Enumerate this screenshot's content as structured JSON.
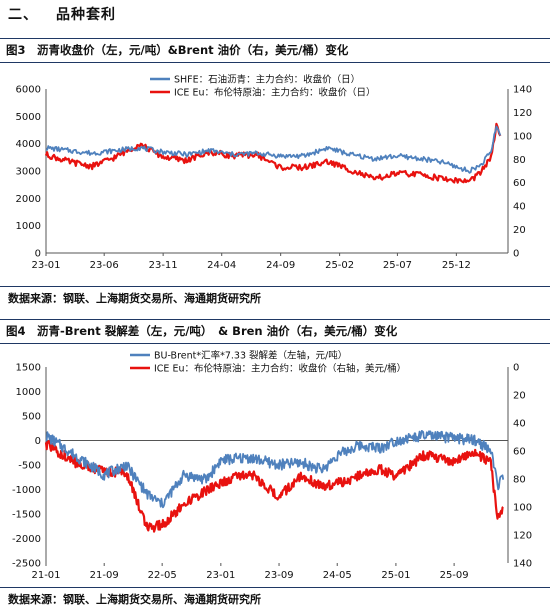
{
  "section": {
    "number": "二、",
    "title": "品种套利"
  },
  "figures": [
    {
      "title": "图3　沥青收盘价（左，元/吨）&Brent 油价（右，美元/桶）变化",
      "source": "数据来源：钢联、上海期货交易所、海通期货研究所"
    },
    {
      "title": "图4　沥青-Brent 裂解差（左，元/吨）　& Bren 油价（右，美元/桶）变化",
      "source": "数据来源：钢联、上海期货交易所、海通期货研究所"
    }
  ],
  "chart_data": [
    {
      "type": "line",
      "x_ticks": [
        "23-01",
        "23-06",
        "23-11",
        "24-04",
        "24-09",
        "25-02",
        "25-07",
        "25-12"
      ],
      "y_left": {
        "ticks": [
          0,
          1000,
          2000,
          3000,
          4000,
          5000,
          6000
        ],
        "range": [
          0,
          6000
        ]
      },
      "y_right": {
        "ticks": [
          0,
          20,
          40,
          60,
          80,
          100,
          120,
          140
        ],
        "range": [
          0,
          140
        ]
      },
      "grid": false,
      "legend_position": "top-left",
      "series": [
        {
          "name": "SHFE：石油沥青：主力合约：收盘价（日）",
          "axis": "left",
          "color": "#4f81bd",
          "x": [
            "2023-01",
            "2023-03",
            "2023-05",
            "2023-07",
            "2023-09",
            "2023-11",
            "2024-01",
            "2024-03",
            "2024-05",
            "2024-07",
            "2024-09",
            "2024-11",
            "2025-01",
            "2025-03",
            "2025-05",
            "2025-07",
            "2025-09",
            "2025-11",
            "2026-01",
            "2026-02",
            "2026-03",
            "2026-03-15",
            "2026-03-25"
          ],
          "values": [
            3850,
            3750,
            3650,
            3750,
            3850,
            3700,
            3600,
            3750,
            3600,
            3650,
            3550,
            3550,
            3850,
            3600,
            3450,
            3550,
            3450,
            3300,
            3000,
            3200,
            3700,
            4650,
            4300
          ]
        },
        {
          "name": "ICE Eu：布伦特原油：主力合约：收盘价（日）",
          "axis": "right",
          "color": "#e8120f",
          "x": [
            "2023-01",
            "2023-03",
            "2023-05",
            "2023-07",
            "2023-09",
            "2023-11",
            "2024-01",
            "2024-03",
            "2024-05",
            "2024-07",
            "2024-09",
            "2024-11",
            "2025-01",
            "2025-03",
            "2025-05",
            "2025-07",
            "2025-09",
            "2025-11",
            "2026-01",
            "2026-02",
            "2026-03",
            "2026-03-15",
            "2026-03-25"
          ],
          "values": [
            84,
            78,
            74,
            82,
            93,
            82,
            79,
            86,
            83,
            84,
            73,
            73,
            78,
            71,
            63,
            68,
            67,
            63,
            61,
            68,
            82,
            108,
            100
          ]
        }
      ]
    },
    {
      "type": "line",
      "x_ticks": [
        "21-01",
        "21-09",
        "22-05",
        "23-01",
        "23-09",
        "24-05",
        "25-01",
        "25-09"
      ],
      "y_left": {
        "ticks": [
          -2500,
          -2000,
          -1500,
          -1000,
          -500,
          0,
          500,
          1000,
          1500
        ],
        "range": [
          -2500,
          1500
        ]
      },
      "y_right": {
        "ticks": [
          0,
          20,
          40,
          60,
          80,
          100,
          120,
          140
        ],
        "range": [
          0,
          140
        ],
        "reversed": true
      },
      "grid": false,
      "legend_position": "top",
      "series": [
        {
          "name": "BU-Brent*汇率*7.33 裂解差（左轴，元/吨）",
          "axis": "left",
          "color": "#4f81bd",
          "x": [
            "2021-01",
            "2021-05",
            "2021-09",
            "2021-12",
            "2022-03",
            "2022-05",
            "2022-08",
            "2022-11",
            "2023-01",
            "2023-05",
            "2023-09",
            "2023-12",
            "2024-03",
            "2024-05",
            "2024-08",
            "2024-11",
            "2025-01",
            "2025-05",
            "2025-09",
            "2025-12",
            "2026-02",
            "2026-03",
            "2026-03-25"
          ],
          "values": [
            100,
            -300,
            -700,
            -500,
            -1100,
            -1300,
            -700,
            -800,
            -400,
            -350,
            -500,
            -450,
            -600,
            -300,
            -100,
            -150,
            0,
            100,
            50,
            0,
            -200,
            -900,
            -800
          ]
        },
        {
          "name": "ICE Eu：布伦特原油：主力合约：收盘价（右轴，美元/桶）",
          "axis": "right",
          "color": "#e8120f",
          "x": [
            "2021-01",
            "2021-05",
            "2021-09",
            "2021-12",
            "2022-03",
            "2022-05",
            "2022-08",
            "2022-11",
            "2023-01",
            "2023-05",
            "2023-09",
            "2023-12",
            "2024-03",
            "2024-05",
            "2024-08",
            "2024-11",
            "2025-01",
            "2025-05",
            "2025-09",
            "2025-12",
            "2026-02",
            "2026-03",
            "2026-03-25"
          ],
          "values": [
            55,
            68,
            75,
            75,
            115,
            113,
            98,
            88,
            83,
            75,
            93,
            78,
            85,
            83,
            78,
            73,
            78,
            63,
            67,
            62,
            68,
            108,
            100
          ]
        }
      ]
    }
  ]
}
